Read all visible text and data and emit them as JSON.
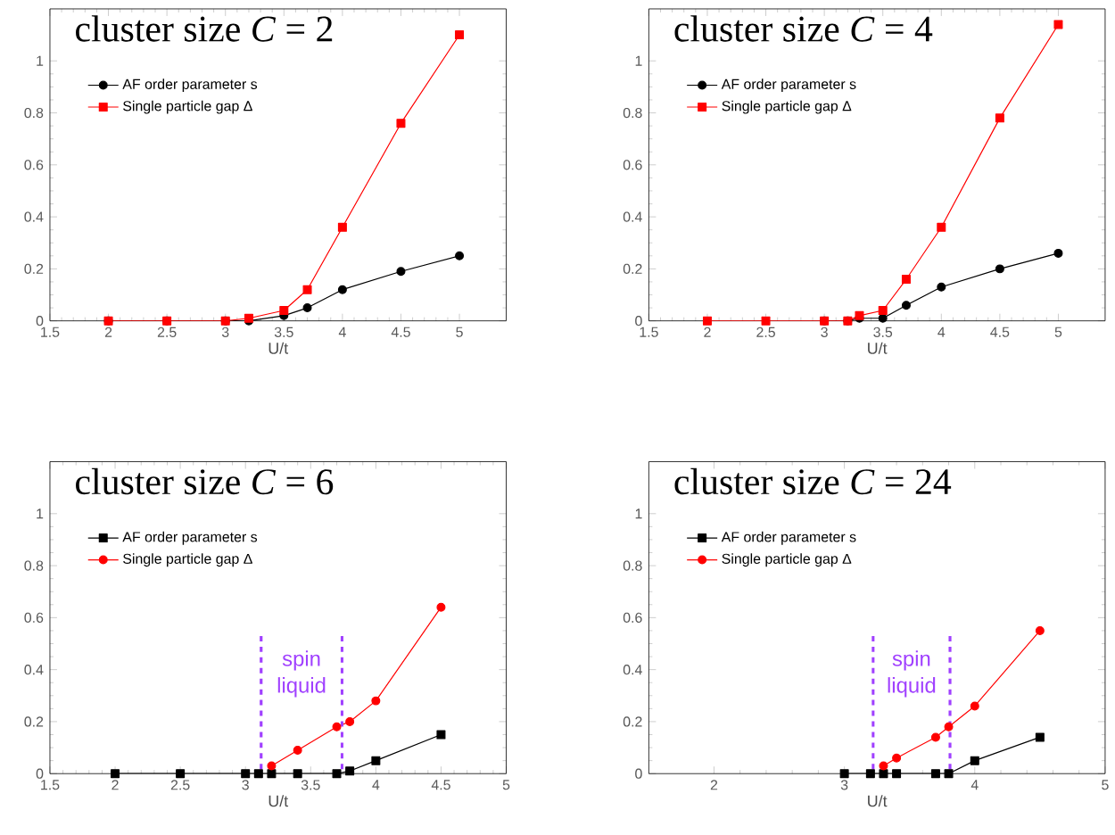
{
  "chart_data": [
    {
      "type": "line",
      "title": "cluster size *C* = 2",
      "xlabel": "U/t",
      "xlim": [
        1.5,
        5.4
      ],
      "ylim": [
        0,
        1.2
      ],
      "xticks": [
        1.5,
        2,
        2.5,
        3,
        3.5,
        4,
        4.5,
        5
      ],
      "yticks": [
        0,
        0.2,
        0.4,
        0.6,
        0.8,
        1
      ],
      "legend": "top left",
      "series": [
        {
          "name": "AF order parameter s",
          "color": "#000000",
          "marker": "circle",
          "x": [
            2,
            2.5,
            3,
            3.2,
            3.5,
            3.7,
            4,
            4.5,
            5
          ],
          "values": [
            0,
            0,
            0,
            0,
            0.02,
            0.05,
            0.12,
            0.19,
            0.25
          ]
        },
        {
          "name": "Single particle gap Δ",
          "color": "#ff0000",
          "marker": "square",
          "x": [
            2,
            2.5,
            3,
            3.2,
            3.5,
            3.7,
            4,
            4.5,
            5
          ],
          "values": [
            0,
            0,
            0,
            0.01,
            0.04,
            0.12,
            0.36,
            0.76,
            1.1
          ]
        }
      ]
    },
    {
      "type": "line",
      "title": "cluster size *C* = 4",
      "xlabel": "U/t",
      "xlim": [
        1.5,
        5.4
      ],
      "ylim": [
        0,
        1.2
      ],
      "xticks": [
        1.5,
        2,
        2.5,
        3,
        3.5,
        4,
        4.5,
        5
      ],
      "yticks": [
        0,
        0.2,
        0.4,
        0.6,
        0.8,
        1
      ],
      "legend": "top left",
      "series": [
        {
          "name": "AF order parameter s",
          "color": "#000000",
          "marker": "circle",
          "x": [
            3,
            3.2,
            3.3,
            3.5,
            3.7,
            4,
            4.5,
            5
          ],
          "values": [
            0,
            0,
            0.01,
            0.01,
            0.06,
            0.13,
            0.2,
            0.26
          ]
        },
        {
          "name": "Single particle gap Δ",
          "color": "#ff0000",
          "marker": "square",
          "x": [
            2,
            2.5,
            3,
            3.2,
            3.3,
            3.5,
            3.7,
            4,
            4.5,
            5
          ],
          "values": [
            0,
            0,
            0,
            0,
            0.02,
            0.04,
            0.16,
            0.36,
            0.78,
            1.14
          ]
        }
      ]
    },
    {
      "type": "line",
      "title": "cluster size *C* = 6",
      "xlabel": "U/t",
      "xlim": [
        1.5,
        5
      ],
      "ylim": [
        0,
        1.2
      ],
      "xticks": [
        1.5,
        2,
        2.5,
        3,
        3.5,
        4,
        4.5,
        5
      ],
      "yticks": [
        0,
        0.2,
        0.4,
        0.6,
        0.8,
        1
      ],
      "legend": "top left",
      "series": [
        {
          "name": "AF order parameter s",
          "color": "#000000",
          "marker": "square",
          "x": [
            2,
            2.5,
            3,
            3.1,
            3.2,
            3.4,
            3.7,
            3.8,
            4,
            4.5
          ],
          "values": [
            0,
            0,
            0,
            0,
            0,
            0,
            0,
            0.01,
            0.05,
            0.15
          ]
        },
        {
          "name": "Single particle gap Δ",
          "color": "#ff0000",
          "marker": "circle",
          "x": [
            3.2,
            3.4,
            3.7,
            3.8,
            4,
            4.5
          ],
          "values": [
            0.03,
            0.09,
            0.18,
            0.2,
            0.28,
            0.64
          ]
        }
      ],
      "ref_lines": [
        {
          "axis": "x",
          "value": 3.12,
          "color": "#a040ff",
          "line_style": "dashed"
        },
        {
          "axis": "x",
          "value": 3.74,
          "color": "#a040ff",
          "line_style": "dashed"
        }
      ],
      "annotations": [
        "spin liquid"
      ]
    },
    {
      "type": "line",
      "title": "cluster size *C* = 24",
      "xlabel": "U/t",
      "xlim": [
        1.5,
        5
      ],
      "ylim": [
        0,
        1.2
      ],
      "xticks": [
        2,
        3,
        4,
        5
      ],
      "yticks": [
        0,
        0.2,
        0.4,
        0.6,
        0.8,
        1
      ],
      "legend": "top left",
      "series": [
        {
          "name": "AF order parameter s",
          "color": "#000000",
          "marker": "square",
          "x": [
            3,
            3.2,
            3.3,
            3.4,
            3.7,
            3.8,
            4,
            4.5
          ],
          "values": [
            0,
            0,
            0,
            0,
            0,
            0,
            0.05,
            0.14
          ]
        },
        {
          "name": "Single particle gap Δ",
          "color": "#ff0000",
          "marker": "circle",
          "x": [
            3.3,
            3.4,
            3.7,
            3.8,
            4,
            4.5
          ],
          "values": [
            0.03,
            0.06,
            0.14,
            0.18,
            0.26,
            0.55
          ]
        }
      ],
      "ref_lines": [
        {
          "axis": "x",
          "value": 3.22,
          "color": "#a040ff",
          "line_style": "dashed"
        },
        {
          "axis": "x",
          "value": 3.81,
          "color": "#a040ff",
          "line_style": "dashed"
        }
      ],
      "annotations": [
        "spin liquid"
      ]
    }
  ]
}
